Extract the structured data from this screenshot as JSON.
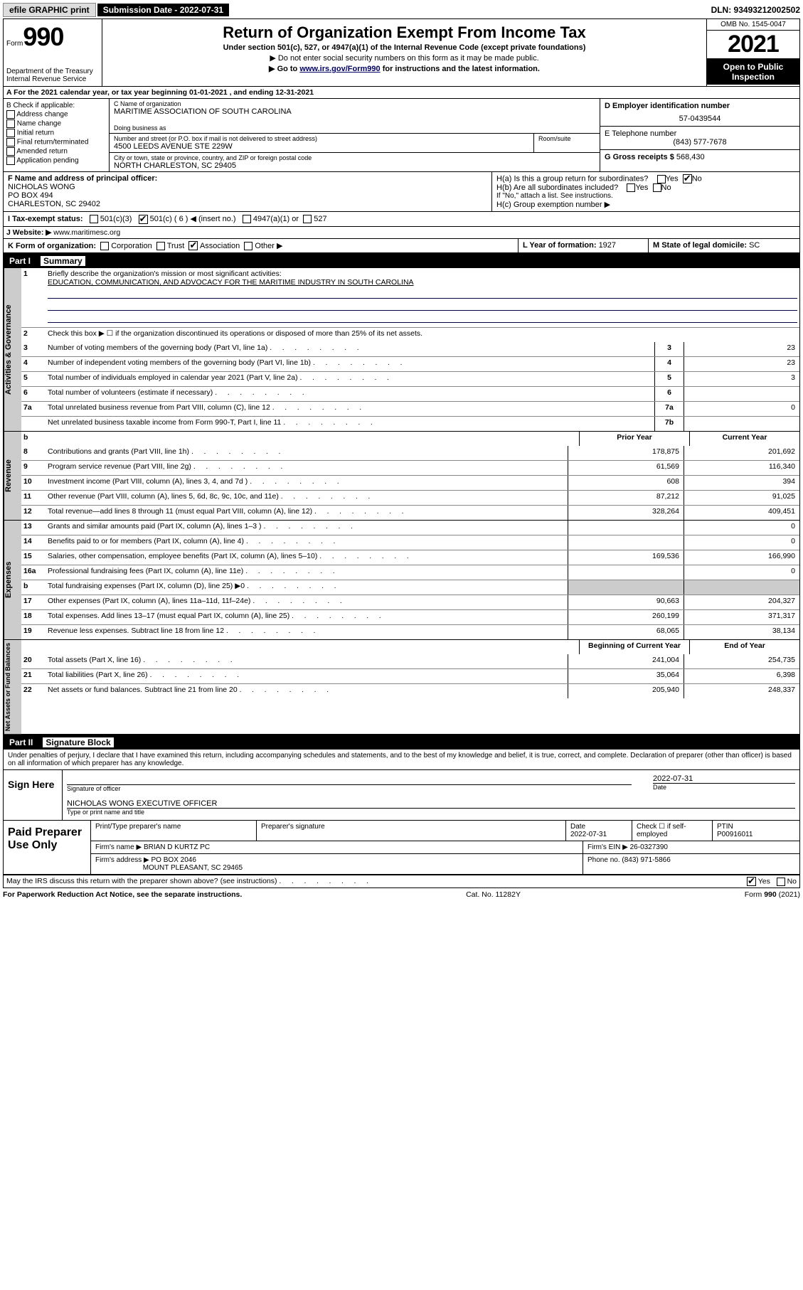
{
  "topbar": {
    "efile": "efile GRAPHIC print",
    "submission_label": "Submission Date - 2022-07-31",
    "dln": "DLN: 93493212002502"
  },
  "header": {
    "form_label": "Form",
    "form_number": "990",
    "title": "Return of Organization Exempt From Income Tax",
    "sub1": "Under section 501(c), 527, or 4947(a)(1) of the Internal Revenue Code (except private foundations)",
    "sub2": "▶ Do not enter social security numbers on this form as it may be made public.",
    "sub3_pre": "▶ Go to ",
    "sub3_link": "www.irs.gov/Form990",
    "sub3_post": " for instructions and the latest information.",
    "dept": "Department of the Treasury\nInternal Revenue Service",
    "omb": "OMB No. 1545-0047",
    "year": "2021",
    "open": "Open to Public Inspection"
  },
  "row_a": "A For the 2021 calendar year, or tax year beginning 01-01-2021   , and ending 12-31-2021",
  "col_b": {
    "heading": "B Check if applicable:",
    "items": [
      "Address change",
      "Name change",
      "Initial return",
      "Final return/terminated",
      "Amended return",
      "Application pending"
    ]
  },
  "col_c": {
    "name_lbl": "C Name of organization",
    "name": "MARITIME ASSOCIATION OF SOUTH CAROLINA",
    "dba_lbl": "Doing business as",
    "addr_lbl": "Number and street (or P.O. box if mail is not delivered to street address)",
    "room_lbl": "Room/suite",
    "addr": "4500 LEEDS AVENUE STE 229W",
    "city_lbl": "City or town, state or province, country, and ZIP or foreign postal code",
    "city": "NORTH CHARLESTON, SC  29405"
  },
  "col_de": {
    "d_lbl": "D Employer identification number",
    "ein": "57-0439544",
    "e_lbl": "E Telephone number",
    "phone": "(843) 577-7678",
    "g_lbl": "G Gross receipts $ ",
    "g_val": "568,430"
  },
  "row_f": {
    "f_lbl": "F Name and address of principal officer:",
    "f_name": "NICHOLAS WONG",
    "f_addr1": "PO BOX 494",
    "f_addr2": "CHARLESTON, SC  29402",
    "h_a": "H(a)  Is this a group return for subordinates?",
    "h_a_yes": "Yes",
    "h_a_no": "No",
    "h_b": "H(b)  Are all subordinates included?",
    "h_b_yes": "Yes",
    "h_b_no": "No",
    "h_b_note": "If \"No,\" attach a list. See instructions.",
    "h_c": "H(c)  Group exemption number ▶"
  },
  "row_i": {
    "lbl": "I  Tax-exempt status:",
    "o1": "501(c)(3)",
    "o2": "501(c) ( 6 ) ◀ (insert no.)",
    "o3": "4947(a)(1) or",
    "o4": "527"
  },
  "row_j": {
    "lbl": "J   Website: ▶ ",
    "url": "www.maritimesc.org"
  },
  "row_k": {
    "lbl": "K Form of organization:",
    "o1": "Corporation",
    "o2": "Trust",
    "o3": "Association",
    "o4": "Other ▶",
    "l_lbl": "L Year of formation: ",
    "l_val": "1927",
    "m_lbl": "M State of legal domicile: ",
    "m_val": "SC"
  },
  "part1": {
    "label": "Part I",
    "title": "Summary"
  },
  "summary_gov": {
    "q1_lbl": "1",
    "q1_desc": "Briefly describe the organization's mission or most significant activities:",
    "q1_text": "EDUCATION, COMMUNICATION, AND ADVOCACY FOR THE MARITIME INDUSTRY IN SOUTH CAROLINA",
    "q2_lbl": "2",
    "q2_desc": "Check this box ▶ ☐  if the organization discontinued its operations or disposed of more than 25% of its net assets.",
    "rows": [
      {
        "n": "3",
        "d": "Number of voting members of the governing body (Part VI, line 1a)",
        "c": "3",
        "v": "23"
      },
      {
        "n": "4",
        "d": "Number of independent voting members of the governing body (Part VI, line 1b)",
        "c": "4",
        "v": "23"
      },
      {
        "n": "5",
        "d": "Total number of individuals employed in calendar year 2021 (Part V, line 2a)",
        "c": "5",
        "v": "3"
      },
      {
        "n": "6",
        "d": "Total number of volunteers (estimate if necessary)",
        "c": "6",
        "v": ""
      },
      {
        "n": "7a",
        "d": "Total unrelated business revenue from Part VIII, column (C), line 12",
        "c": "7a",
        "v": "0"
      },
      {
        "n": "",
        "d": "Net unrelated business taxable income from Form 990-T, Part I, line 11",
        "c": "7b",
        "v": ""
      }
    ]
  },
  "two_col_header": {
    "b": "b",
    "py": "Prior Year",
    "cy": "Current Year"
  },
  "revenue": {
    "label": "Revenue",
    "rows": [
      {
        "n": "8",
        "d": "Contributions and grants (Part VIII, line 1h)",
        "py": "178,875",
        "cy": "201,692"
      },
      {
        "n": "9",
        "d": "Program service revenue (Part VIII, line 2g)",
        "py": "61,569",
        "cy": "116,340"
      },
      {
        "n": "10",
        "d": "Investment income (Part VIII, column (A), lines 3, 4, and 7d )",
        "py": "608",
        "cy": "394"
      },
      {
        "n": "11",
        "d": "Other revenue (Part VIII, column (A), lines 5, 6d, 8c, 9c, 10c, and 11e)",
        "py": "87,212",
        "cy": "91,025"
      },
      {
        "n": "12",
        "d": "Total revenue—add lines 8 through 11 (must equal Part VIII, column (A), line 12)",
        "py": "328,264",
        "cy": "409,451"
      }
    ]
  },
  "expenses": {
    "label": "Expenses",
    "rows": [
      {
        "n": "13",
        "d": "Grants and similar amounts paid (Part IX, column (A), lines 1–3 )",
        "py": "",
        "cy": "0"
      },
      {
        "n": "14",
        "d": "Benefits paid to or for members (Part IX, column (A), line 4)",
        "py": "",
        "cy": "0"
      },
      {
        "n": "15",
        "d": "Salaries, other compensation, employee benefits (Part IX, column (A), lines 5–10)",
        "py": "169,536",
        "cy": "166,990"
      },
      {
        "n": "16a",
        "d": "Professional fundraising fees (Part IX, column (A), line 11e)",
        "py": "",
        "cy": "0"
      },
      {
        "n": "b",
        "d": "Total fundraising expenses (Part IX, column (D), line 25) ▶0",
        "py": "GRAY",
        "cy": "GRAY"
      },
      {
        "n": "17",
        "d": "Other expenses (Part IX, column (A), lines 11a–11d, 11f–24e)",
        "py": "90,663",
        "cy": "204,327"
      },
      {
        "n": "18",
        "d": "Total expenses. Add lines 13–17 (must equal Part IX, column (A), line 25)",
        "py": "260,199",
        "cy": "371,317"
      },
      {
        "n": "19",
        "d": "Revenue less expenses. Subtract line 18 from line 12",
        "py": "68,065",
        "cy": "38,134"
      }
    ]
  },
  "netassets": {
    "label": "Net Assets or Fund Balances",
    "header": {
      "py": "Beginning of Current Year",
      "cy": "End of Year"
    },
    "rows": [
      {
        "n": "20",
        "d": "Total assets (Part X, line 16)",
        "py": "241,004",
        "cy": "254,735"
      },
      {
        "n": "21",
        "d": "Total liabilities (Part X, line 26)",
        "py": "35,064",
        "cy": "6,398"
      },
      {
        "n": "22",
        "d": "Net assets or fund balances. Subtract line 21 from line 20",
        "py": "205,940",
        "cy": "248,337"
      }
    ]
  },
  "part2": {
    "label": "Part II",
    "title": "Signature Block"
  },
  "penalty": "Under penalties of perjury, I declare that I have examined this return, including accompanying schedules and statements, and to the best of my knowledge and belief, it is true, correct, and complete. Declaration of preparer (other than officer) is based on all information of which preparer has any knowledge.",
  "sign": {
    "here": "Sign Here",
    "sig_lbl": "Signature of officer",
    "date_lbl": "Date",
    "date": "2022-07-31",
    "name": "NICHOLAS WONG  EXECUTIVE OFFICER",
    "name_lbl": "Type or print name and title"
  },
  "paid": {
    "title": "Paid Preparer Use Only",
    "h1": "Print/Type preparer's name",
    "h2": "Preparer's signature",
    "h3": "Date",
    "h3v": "2022-07-31",
    "h4": "Check ☐ if self-employed",
    "h5": "PTIN",
    "h5v": "P00916011",
    "firm_lbl": "Firm's name    ▶",
    "firm": "BRIAN D KURTZ PC",
    "ein_lbl": "Firm's EIN ▶",
    "ein": "26-0327390",
    "addr_lbl": "Firm's address ▶",
    "addr1": "PO BOX 2046",
    "addr2": "MOUNT PLEASANT, SC  29465",
    "phone_lbl": "Phone no. ",
    "phone": "(843) 971-5866"
  },
  "discuss": {
    "q": "May the IRS discuss this return with the preparer shown above? (see instructions)",
    "yes": "Yes",
    "no": "No"
  },
  "footer": {
    "left": "For Paperwork Reduction Act Notice, see the separate instructions.",
    "mid": "Cat. No. 11282Y",
    "right": "Form 990 (2021)"
  }
}
